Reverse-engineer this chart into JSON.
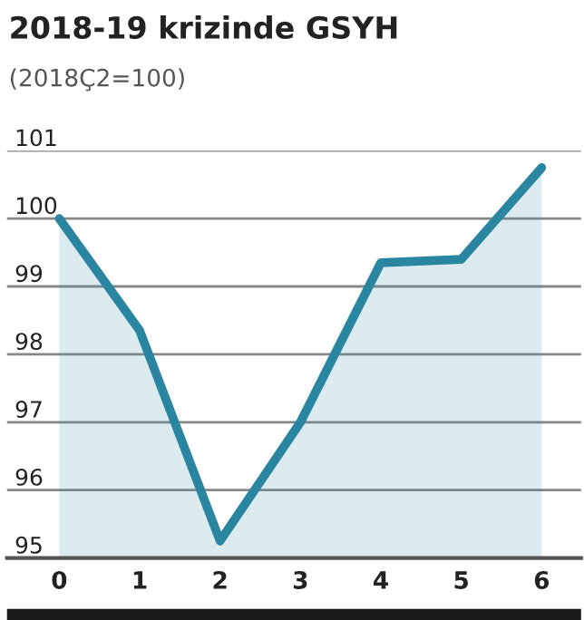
{
  "chart_data": {
    "type": "area",
    "title": "2018-19 krizinde GSYH",
    "subtitle": "(2018Ç2=100)",
    "categories": [
      "0",
      "1",
      "2",
      "3",
      "4",
      "5",
      "6"
    ],
    "series": [
      {
        "color": "#2a86a0",
        "values": [
          100.0,
          98.35,
          95.25,
          97.0,
          99.35,
          99.4,
          100.75
        ]
      }
    ],
    "ylim": [
      95,
      101
    ],
    "yticks": [
      95,
      96,
      97,
      98,
      99,
      100,
      101
    ],
    "grid": "y"
  }
}
